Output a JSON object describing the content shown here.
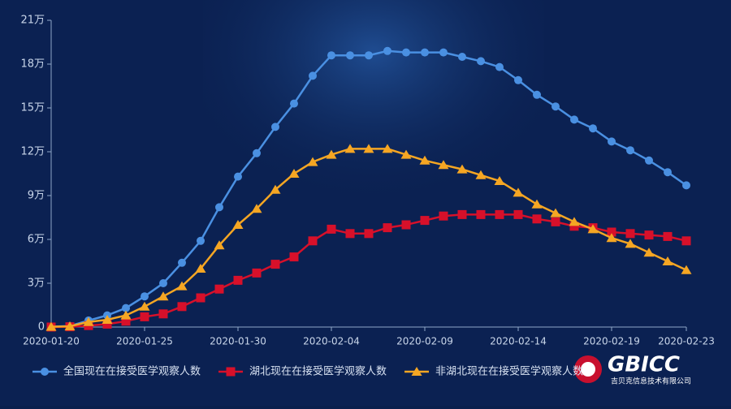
{
  "chart_data": {
    "type": "line",
    "categories": [
      "2020-01-20",
      null,
      null,
      null,
      null,
      "2020-01-25",
      null,
      null,
      null,
      null,
      "2020-01-30",
      null,
      null,
      null,
      null,
      "2020-02-04",
      null,
      null,
      null,
      null,
      "2020-02-09",
      null,
      null,
      null,
      null,
      "2020-02-14",
      null,
      null,
      null,
      null,
      "2020-02-19",
      null,
      null,
      null,
      "2020-02-23"
    ],
    "series": [
      {
        "name": "全国现在在接受医学观察人数",
        "color": "#4a90e2",
        "marker": "circle",
        "values": [
          300,
          700,
          4500,
          8000,
          13000,
          21000,
          30000,
          44000,
          59000,
          82000,
          103000,
          119000,
          137000,
          153000,
          172000,
          186000,
          186000,
          186000,
          189000,
          188000,
          188000,
          188000,
          185000,
          182000,
          178000,
          169000,
          159000,
          151000,
          142000,
          136000,
          127000,
          121000,
          114000,
          106000,
          97000
        ]
      },
      {
        "name": "湖北现在在接受医学观察人数",
        "color": "#d7102a",
        "marker": "square",
        "values": [
          0,
          200,
          1000,
          2000,
          4000,
          7000,
          9000,
          14000,
          20000,
          26000,
          32000,
          37000,
          43000,
          48000,
          59000,
          67000,
          64000,
          64000,
          68000,
          70000,
          73000,
          76000,
          77000,
          77000,
          77000,
          77000,
          74000,
          72000,
          69000,
          68000,
          65000,
          64000,
          63000,
          62000,
          59000
        ]
      },
      {
        "name": "非湖北现在在接受医学观察人数",
        "color": "#f5a623",
        "marker": "triangle",
        "values": [
          200,
          500,
          3500,
          5000,
          8000,
          14000,
          21000,
          28000,
          40000,
          56000,
          70000,
          81000,
          94000,
          105000,
          113000,
          118000,
          122000,
          122000,
          122000,
          118000,
          114000,
          111000,
          108000,
          104000,
          100000,
          92000,
          84000,
          78000,
          72000,
          67000,
          61000,
          57000,
          51000,
          45000,
          39000
        ]
      }
    ],
    "ylim": [
      0,
      210000
    ],
    "yticks": [
      0,
      {
        "value": 30000,
        "label": "3万"
      },
      {
        "value": 60000,
        "label": "6万"
      },
      {
        "value": 90000,
        "label": "9万"
      },
      {
        "value": 120000,
        "label": "12万"
      },
      {
        "value": 150000,
        "label": "15万"
      },
      {
        "value": 180000,
        "label": "18万"
      },
      {
        "value": 210000,
        "label": "21万"
      }
    ],
    "legend": "bottom-left",
    "logo_text": "GBICC",
    "logo_subtitle": "吉贝克信息技术有限公司"
  }
}
